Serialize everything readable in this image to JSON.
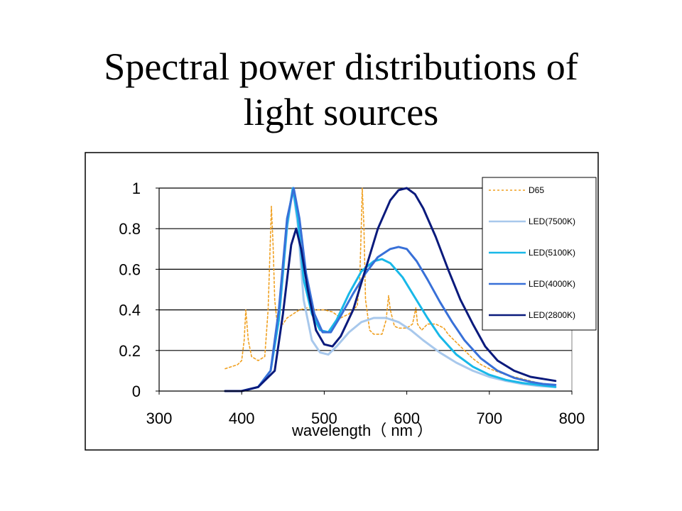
{
  "slide": {
    "title_line1": "Spectral power distributions of",
    "title_line2": "light sources"
  },
  "chart_data": {
    "type": "line",
    "xlabel": "wavelength（ nm ）",
    "ylabel": "",
    "xlim": [
      300,
      800
    ],
    "ylim": [
      0,
      1
    ],
    "x_ticks": [
      "300",
      "400",
      "500",
      "600",
      "700",
      "800"
    ],
    "y_ticks": [
      "0",
      "0.2",
      "0.4",
      "0.6",
      "0.8",
      "1"
    ],
    "grid": "horizontal",
    "legend_position": "top-right",
    "series": [
      {
        "name": "D65",
        "color": "#f0a020",
        "dash": "dashed",
        "points": [
          [
            380,
            0.11
          ],
          [
            395,
            0.13
          ],
          [
            400,
            0.15
          ],
          [
            403,
            0.25
          ],
          [
            405,
            0.4
          ],
          [
            408,
            0.25
          ],
          [
            412,
            0.17
          ],
          [
            420,
            0.15
          ],
          [
            428,
            0.17
          ],
          [
            432,
            0.4
          ],
          [
            435,
            0.78
          ],
          [
            436,
            0.91
          ],
          [
            438,
            0.72
          ],
          [
            440,
            0.45
          ],
          [
            443,
            0.33
          ],
          [
            450,
            0.33
          ],
          [
            455,
            0.36
          ],
          [
            470,
            0.4
          ],
          [
            480,
            0.41
          ],
          [
            490,
            0.4
          ],
          [
            500,
            0.4
          ],
          [
            510,
            0.39
          ],
          [
            520,
            0.36
          ],
          [
            530,
            0.38
          ],
          [
            540,
            0.42
          ],
          [
            543,
            0.55
          ],
          [
            545,
            0.83
          ],
          [
            546,
            1.0
          ],
          [
            548,
            0.82
          ],
          [
            550,
            0.45
          ],
          [
            553,
            0.36
          ],
          [
            555,
            0.3
          ],
          [
            560,
            0.28
          ],
          [
            570,
            0.28
          ],
          [
            575,
            0.35
          ],
          [
            578,
            0.47
          ],
          [
            580,
            0.4
          ],
          [
            585,
            0.32
          ],
          [
            590,
            0.31
          ],
          [
            600,
            0.31
          ],
          [
            607,
            0.33
          ],
          [
            611,
            0.41
          ],
          [
            613,
            0.33
          ],
          [
            618,
            0.3
          ],
          [
            625,
            0.33
          ],
          [
            635,
            0.33
          ],
          [
            645,
            0.31
          ],
          [
            650,
            0.28
          ],
          [
            660,
            0.24
          ],
          [
            670,
            0.2
          ],
          [
            680,
            0.16
          ],
          [
            690,
            0.13
          ],
          [
            700,
            0.11
          ],
          [
            720,
            0.08
          ],
          [
            740,
            0.06
          ],
          [
            760,
            0.04
          ],
          [
            780,
            0.03
          ]
        ]
      },
      {
        "name": "LED(7500K)",
        "color": "#a8c8ec",
        "dash": "solid",
        "points": [
          [
            380,
            0
          ],
          [
            400,
            0
          ],
          [
            420,
            0.02
          ],
          [
            435,
            0.1
          ],
          [
            445,
            0.35
          ],
          [
            455,
            0.8
          ],
          [
            462,
            1.0
          ],
          [
            468,
            0.82
          ],
          [
            475,
            0.45
          ],
          [
            485,
            0.25
          ],
          [
            495,
            0.19
          ],
          [
            505,
            0.18
          ],
          [
            515,
            0.22
          ],
          [
            530,
            0.29
          ],
          [
            545,
            0.34
          ],
          [
            560,
            0.36
          ],
          [
            575,
            0.36
          ],
          [
            590,
            0.34
          ],
          [
            605,
            0.3
          ],
          [
            620,
            0.25
          ],
          [
            640,
            0.19
          ],
          [
            660,
            0.14
          ],
          [
            680,
            0.1
          ],
          [
            700,
            0.07
          ],
          [
            720,
            0.05
          ],
          [
            740,
            0.035
          ],
          [
            760,
            0.025
          ],
          [
            780,
            0.02
          ]
        ]
      },
      {
        "name": "LED(5100K)",
        "color": "#18b8e8",
        "dash": "solid",
        "points": [
          [
            380,
            0
          ],
          [
            400,
            0
          ],
          [
            420,
            0.02
          ],
          [
            435,
            0.1
          ],
          [
            445,
            0.35
          ],
          [
            455,
            0.82
          ],
          [
            462,
            1.0
          ],
          [
            468,
            0.85
          ],
          [
            475,
            0.55
          ],
          [
            485,
            0.38
          ],
          [
            495,
            0.3
          ],
          [
            505,
            0.29
          ],
          [
            515,
            0.35
          ],
          [
            530,
            0.48
          ],
          [
            545,
            0.59
          ],
          [
            560,
            0.64
          ],
          [
            570,
            0.65
          ],
          [
            580,
            0.63
          ],
          [
            595,
            0.56
          ],
          [
            610,
            0.46
          ],
          [
            625,
            0.36
          ],
          [
            640,
            0.27
          ],
          [
            660,
            0.18
          ],
          [
            680,
            0.12
          ],
          [
            700,
            0.08
          ],
          [
            720,
            0.055
          ],
          [
            740,
            0.04
          ],
          [
            760,
            0.03
          ],
          [
            780,
            0.02
          ]
        ]
      },
      {
        "name": "LED(4000K)",
        "color": "#3870d8",
        "dash": "solid",
        "points": [
          [
            380,
            0
          ],
          [
            400,
            0
          ],
          [
            420,
            0.02
          ],
          [
            435,
            0.1
          ],
          [
            445,
            0.4
          ],
          [
            455,
            0.85
          ],
          [
            463,
            1.0
          ],
          [
            470,
            0.85
          ],
          [
            478,
            0.58
          ],
          [
            488,
            0.38
          ],
          [
            498,
            0.29
          ],
          [
            508,
            0.29
          ],
          [
            520,
            0.37
          ],
          [
            535,
            0.48
          ],
          [
            550,
            0.58
          ],
          [
            565,
            0.66
          ],
          [
            580,
            0.7
          ],
          [
            590,
            0.71
          ],
          [
            600,
            0.7
          ],
          [
            612,
            0.64
          ],
          [
            625,
            0.55
          ],
          [
            640,
            0.44
          ],
          [
            655,
            0.34
          ],
          [
            670,
            0.25
          ],
          [
            690,
            0.16
          ],
          [
            710,
            0.1
          ],
          [
            730,
            0.065
          ],
          [
            750,
            0.045
          ],
          [
            765,
            0.035
          ],
          [
            780,
            0.03
          ]
        ]
      },
      {
        "name": "LED(2800K)",
        "color": "#0a1a7c",
        "dash": "solid",
        "points": [
          [
            380,
            0
          ],
          [
            400,
            0
          ],
          [
            420,
            0.02
          ],
          [
            440,
            0.1
          ],
          [
            450,
            0.38
          ],
          [
            460,
            0.72
          ],
          [
            466,
            0.8
          ],
          [
            472,
            0.7
          ],
          [
            480,
            0.5
          ],
          [
            490,
            0.3
          ],
          [
            500,
            0.23
          ],
          [
            510,
            0.22
          ],
          [
            520,
            0.27
          ],
          [
            535,
            0.4
          ],
          [
            550,
            0.6
          ],
          [
            565,
            0.8
          ],
          [
            580,
            0.94
          ],
          [
            590,
            0.99
          ],
          [
            600,
            1.0
          ],
          [
            610,
            0.97
          ],
          [
            620,
            0.9
          ],
          [
            635,
            0.76
          ],
          [
            650,
            0.6
          ],
          [
            665,
            0.45
          ],
          [
            680,
            0.33
          ],
          [
            695,
            0.22
          ],
          [
            710,
            0.15
          ],
          [
            730,
            0.1
          ],
          [
            750,
            0.07
          ],
          [
            765,
            0.06
          ],
          [
            780,
            0.05
          ]
        ]
      }
    ]
  }
}
